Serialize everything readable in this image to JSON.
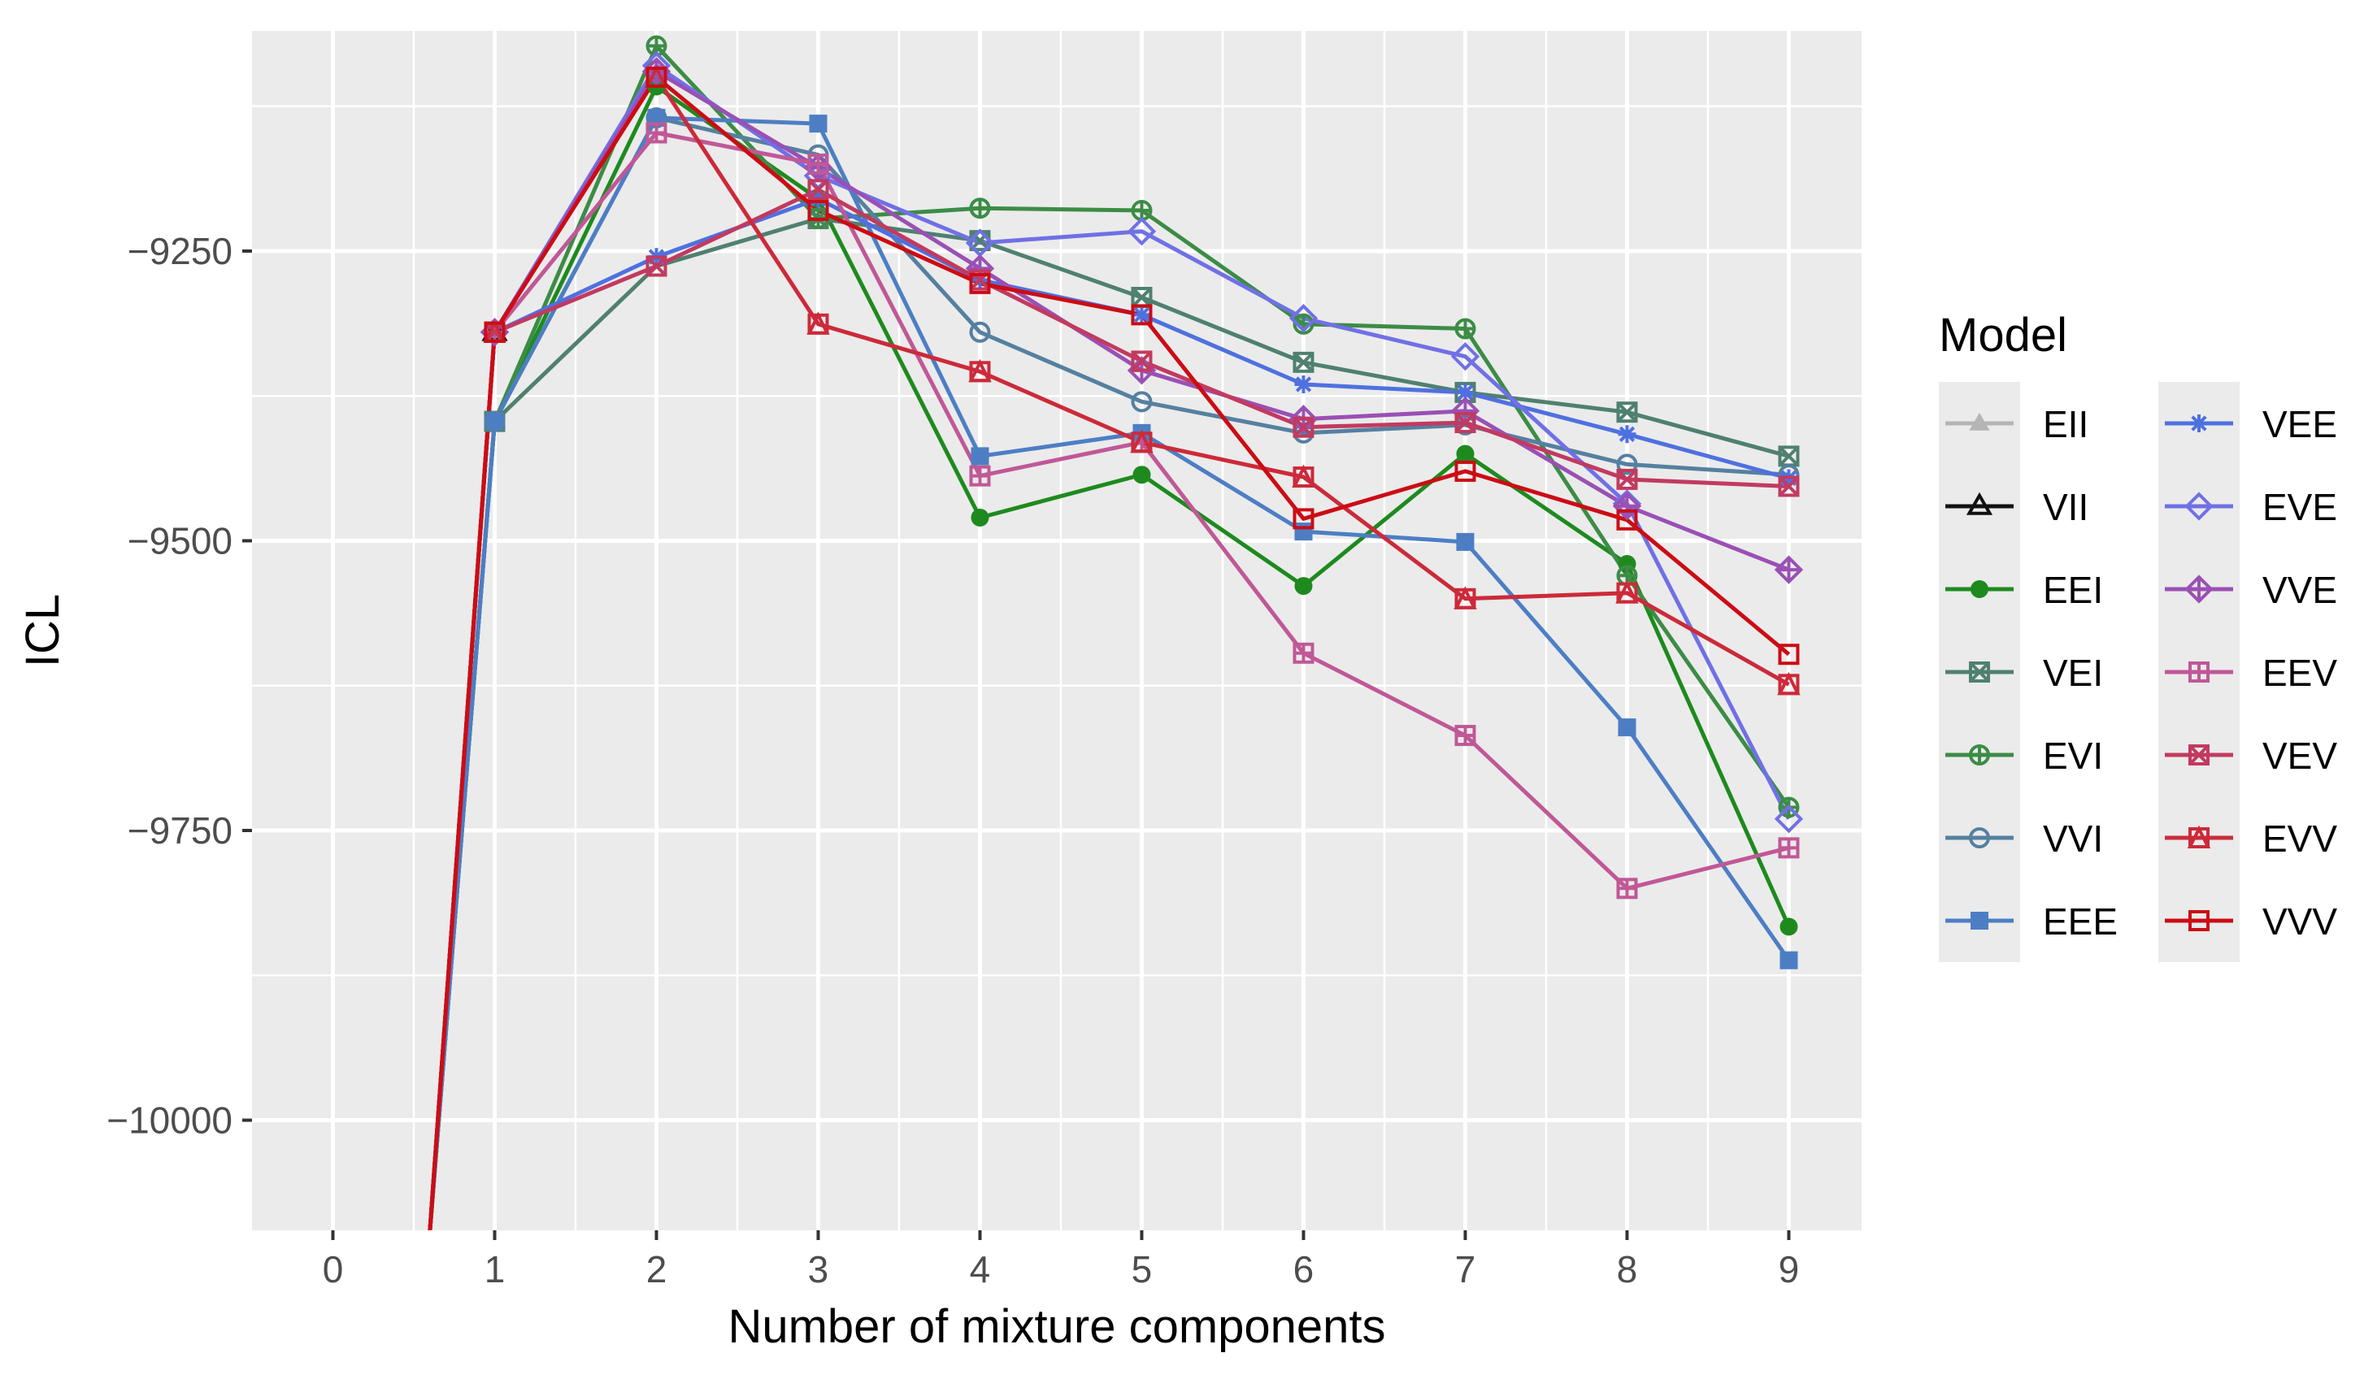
{
  "chart_data": {
    "type": "line",
    "title": "",
    "xlabel": "Number of mixture components",
    "ylabel": "ICL",
    "x_ticks": [
      "0",
      "1",
      "2",
      "3",
      "4",
      "5",
      "6",
      "7",
      "8",
      "9"
    ],
    "y_ticks": [
      {
        "value": -10000,
        "label": "−10000"
      },
      {
        "value": -9750,
        "label": "−9750"
      },
      {
        "value": -9500,
        "label": "−9500"
      },
      {
        "value": -9250,
        "label": "−9250"
      }
    ],
    "xlim": [
      -0.5,
      9.45
    ],
    "ylim": [
      -10095,
      -9060
    ],
    "grid": true,
    "legend_title": "Model",
    "legend_position": "right",
    "series": [
      {
        "name": "EII",
        "color": "#b5b5b5",
        "marker": "triangle-filled",
        "x": [
          0.6,
          1
        ],
        "values": [
          -10095,
          -9320
        ]
      },
      {
        "name": "VII",
        "color": "#111111",
        "marker": "triangle-open",
        "x": [
          0.6,
          1
        ],
        "values": [
          -10095,
          -9320
        ]
      },
      {
        "name": "EEI",
        "color": "#1e8a1e",
        "marker": "circle-filled",
        "x": [
          0.6,
          1,
          2,
          3,
          4,
          5,
          6,
          7,
          8,
          9
        ],
        "values": [
          -10095,
          -9397,
          -9108,
          -9205,
          -9480,
          -9443,
          -9539,
          -9425,
          -9520,
          -9833
        ]
      },
      {
        "name": "VEI",
        "color": "#4f8070",
        "marker": "square-x",
        "x": [
          0.6,
          1,
          2,
          3,
          4,
          5,
          6,
          7,
          8,
          9
        ],
        "values": [
          -10095,
          -9397,
          -9263,
          -9222,
          -9241,
          -9290,
          -9346,
          -9372,
          -9389,
          -9427
        ]
      },
      {
        "name": "EVI",
        "color": "#3c8c46",
        "marker": "circle-plus",
        "x": [
          0.6,
          1,
          2,
          3,
          4,
          5,
          6,
          7,
          8,
          9
        ],
        "values": [
          -10095,
          -9397,
          -9073,
          -9222,
          -9213,
          -9215,
          -9313,
          -9317,
          -9530,
          -9730
        ]
      },
      {
        "name": "VVI",
        "color": "#5580a0",
        "marker": "circle-open",
        "x": [
          0.6,
          1,
          2,
          3,
          4,
          5,
          6,
          7,
          8,
          9
        ],
        "values": [
          -10095,
          -9397,
          -9135,
          -9167,
          -9320,
          -9380,
          -9407,
          -9400,
          -9434,
          -9443
        ]
      },
      {
        "name": "EEE",
        "color": "#4d7ec4",
        "marker": "square-filled",
        "x": [
          0.6,
          1,
          2,
          3,
          4,
          5,
          6,
          7,
          8,
          9
        ],
        "values": [
          -10095,
          -9397,
          -9135,
          -9140,
          -9427,
          -9407,
          -9492,
          -9501,
          -9661,
          -9862
        ]
      },
      {
        "name": "VEE",
        "color": "#4f70e0",
        "marker": "asterisk",
        "x": [
          0.6,
          1,
          2,
          3,
          4,
          5,
          6,
          7,
          8,
          9
        ],
        "values": [
          -10095,
          -9320,
          -9255,
          -9205,
          -9275,
          -9305,
          -9365,
          -9372,
          -9408,
          -9446
        ]
      },
      {
        "name": "EVE",
        "color": "#7070e6",
        "marker": "diamond-open",
        "x": [
          0.6,
          1,
          2,
          3,
          4,
          5,
          6,
          7,
          8,
          9
        ],
        "values": [
          -10095,
          -9320,
          -9090,
          -9185,
          -9243,
          -9233,
          -9308,
          -9341,
          -9468,
          -9740
        ]
      },
      {
        "name": "VVE",
        "color": "#9a50b4",
        "marker": "diamond-plus",
        "x": [
          0.6,
          1,
          2,
          3,
          4,
          5,
          6,
          7,
          8,
          9
        ],
        "values": [
          -10095,
          -9320,
          -9095,
          -9178,
          -9265,
          -9353,
          -9395,
          -9388,
          -9470,
          -9525
        ]
      },
      {
        "name": "EEV",
        "color": "#c05896",
        "marker": "square-plus",
        "x": [
          0.6,
          1,
          2,
          3,
          4,
          5,
          6,
          7,
          8,
          9
        ],
        "values": [
          -10095,
          -9320,
          -9148,
          -9175,
          -9444,
          -9415,
          -9597,
          -9668,
          -9800,
          -9765
        ]
      },
      {
        "name": "VEV",
        "color": "#c23a60",
        "marker": "square-x",
        "x": [
          0.6,
          1,
          2,
          3,
          4,
          5,
          6,
          7,
          8,
          9
        ],
        "values": [
          -10095,
          -9320,
          -9263,
          -9197,
          -9275,
          -9345,
          -9402,
          -9398,
          -9447,
          -9453
        ]
      },
      {
        "name": "EVV",
        "color": "#cc2a3a",
        "marker": "square-triangle",
        "x": [
          0.6,
          1,
          2,
          3,
          4,
          5,
          6,
          7,
          8,
          9
        ],
        "values": [
          -10095,
          -9320,
          -9100,
          -9313,
          -9354,
          -9415,
          -9445,
          -9550,
          -9545,
          -9624
        ]
      },
      {
        "name": "VVV",
        "color": "#cc0c14",
        "marker": "square-open",
        "x": [
          0.6,
          1,
          2,
          3,
          4,
          5,
          6,
          7,
          8,
          9
        ],
        "values": [
          -10095,
          -9320,
          -9100,
          -9215,
          -9278,
          -9305,
          -9481,
          -9440,
          -9482,
          -9598
        ]
      }
    ]
  }
}
